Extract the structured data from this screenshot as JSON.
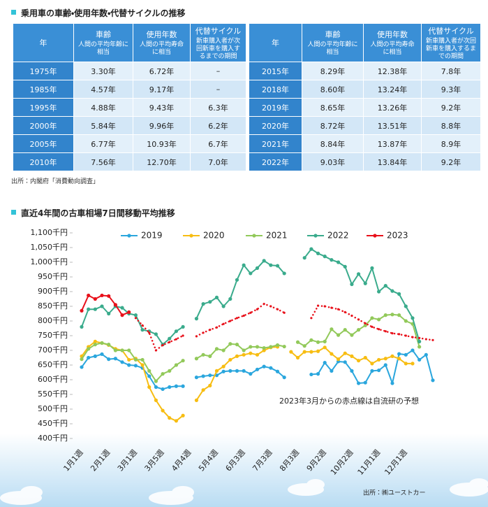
{
  "section1": {
    "title": "乗用車の車齢・使用年数・代替サイクルの推移",
    "table": {
      "header": [
        {
          "label": "年"
        },
        {
          "label": "車齢",
          "note": "人間の平均年齢に相当"
        },
        {
          "label": "使用年数",
          "note": "人間の平均寿命に相当"
        },
        {
          "label": "代替サイクル",
          "note": "新車購入者が次回新車を購入するまでの期間"
        }
      ],
      "left_rows": [
        [
          "1975年",
          "3.30年",
          "6.72年",
          "–"
        ],
        [
          "1985年",
          "4.57年",
          "9.17年",
          "–"
        ],
        [
          "1995年",
          "4.88年",
          "9.43年",
          "6.3年"
        ],
        [
          "2000年",
          "5.84年",
          "9.96年",
          "6.2年"
        ],
        [
          "2005年",
          "6.77年",
          "10.93年",
          "6.7年"
        ],
        [
          "2010年",
          "7.56年",
          "12.70年",
          "7.0年"
        ]
      ],
      "right_rows": [
        [
          "2015年",
          "8.29年",
          "12.38年",
          "7.8年"
        ],
        [
          "2018年",
          "8.60年",
          "13.24年",
          "9.3年"
        ],
        [
          "2019年",
          "8.65年",
          "13.26年",
          "9.2年"
        ],
        [
          "2020年",
          "8.72年",
          "13.51年",
          "8.8年"
        ],
        [
          "2021年",
          "8.84年",
          "13.87年",
          "8.9年"
        ],
        [
          "2022年",
          "9.03年",
          "13.84年",
          "9.2年"
        ]
      ]
    },
    "source": "出所：内閣府「消費動向調査」"
  },
  "chart_data": {
    "type": "line",
    "title": "直近4年間の古車相場7日間移動平均推移",
    "categories": [
      "1月1週",
      null,
      null,
      null,
      "2月1週",
      null,
      null,
      null,
      "3月1週",
      null,
      null,
      null,
      "3月5週",
      null,
      null,
      null,
      "4月4週",
      null,
      null,
      null,
      "5月4週",
      null,
      null,
      null,
      "6月3週",
      null,
      null,
      null,
      "7月3週",
      null,
      null,
      null,
      "8月3週",
      null,
      null,
      null,
      "9月2週",
      null,
      null,
      null,
      "10月2週",
      null,
      null,
      null,
      "11月1週",
      null,
      null,
      null,
      "12月1週",
      null,
      null,
      null,
      null
    ],
    "series": [
      {
        "name": "2019",
        "color": "#2aa6dd",
        "values": [
          643,
          675,
          680,
          687,
          670,
          672,
          660,
          650,
          648,
          640,
          612,
          575,
          568,
          575,
          578,
          578,
          null,
          608,
          612,
          615,
          615,
          628,
          630,
          630,
          630,
          620,
          635,
          645,
          640,
          628,
          608,
          null,
          null,
          null,
          618,
          620,
          658,
          630,
          662,
          660,
          630,
          588,
          590,
          630,
          632,
          650,
          588,
          688,
          685,
          700,
          668,
          685,
          598
        ]
      },
      {
        "name": "2020",
        "color": "#f7bd12",
        "values": [
          680,
          712,
          730,
          725,
          718,
          705,
          700,
          668,
          672,
          650,
          575,
          530,
          495,
          470,
          460,
          478,
          null,
          530,
          565,
          580,
          630,
          645,
          668,
          680,
          685,
          690,
          685,
          700,
          710,
          712,
          null,
          695,
          675,
          695,
          695,
          697,
          710,
          688,
          670,
          690,
          680,
          665,
          675,
          655,
          668,
          672,
          680,
          672,
          655,
          655,
          null,
          null,
          null
        ]
      },
      {
        "name": "2021",
        "color": "#92c95a",
        "values": [
          670,
          705,
          720,
          725,
          720,
          700,
          700,
          700,
          668,
          668,
          630,
          595,
          620,
          630,
          650,
          665,
          null,
          672,
          685,
          680,
          705,
          700,
          722,
          720,
          700,
          712,
          712,
          708,
          712,
          718,
          713,
          null,
          728,
          715,
          735,
          728,
          730,
          772,
          752,
          770,
          752,
          770,
          785,
          810,
          805,
          820,
          822,
          820,
          800,
          790,
          712,
          null,
          null
        ]
      },
      {
        "name": "2022",
        "color": "#3aab8c",
        "values": [
          780,
          840,
          840,
          850,
          825,
          850,
          845,
          825,
          820,
          770,
          765,
          755,
          720,
          740,
          765,
          780,
          null,
          808,
          858,
          865,
          880,
          850,
          875,
          940,
          990,
          962,
          980,
          1005,
          990,
          988,
          962,
          null,
          null,
          1015,
          1045,
          1030,
          1020,
          1008,
          1000,
          985,
          925,
          960,
          928,
          980,
          900,
          920,
          902,
          892,
          850,
          810,
          730,
          null,
          null
        ]
      },
      {
        "name": "2023",
        "color": "#e8101a",
        "values": [
          835,
          887,
          875,
          887,
          885,
          855,
          820,
          830,
          null,
          null,
          null,
          null,
          null,
          null,
          null,
          null,
          null,
          null,
          null,
          null,
          null,
          null,
          null,
          null,
          null,
          null,
          null,
          null,
          null,
          null,
          null,
          null,
          null,
          null,
          null,
          null,
          null,
          null,
          null,
          null,
          null,
          null,
          null,
          null,
          null,
          null,
          null,
          null,
          null,
          null,
          null,
          null,
          null
        ],
        "projected": [
          null,
          null,
          null,
          null,
          null,
          null,
          null,
          null,
          810,
          785,
          760,
          700,
          718,
          728,
          738,
          750,
          null,
          748,
          760,
          770,
          778,
          790,
          800,
          810,
          818,
          828,
          840,
          858,
          850,
          840,
          828,
          null,
          null,
          null,
          810,
          852,
          850,
          845,
          840,
          830,
          818,
          805,
          792,
          780,
          772,
          765,
          758,
          755,
          750,
          745,
          742,
          738,
          735
        ]
      }
    ],
    "ylim": [
      400,
      1100
    ],
    "yticks": [
      {
        "value": 400,
        "label": "400千円"
      },
      {
        "value": 450,
        "label": "450千円"
      },
      {
        "value": 500,
        "label": "500千円"
      },
      {
        "value": 550,
        "label": "550千円"
      },
      {
        "value": 600,
        "label": "600千円"
      },
      {
        "value": 650,
        "label": "650千円"
      },
      {
        "value": 700,
        "label": "700千円"
      },
      {
        "value": 750,
        "label": "750千円"
      },
      {
        "value": 800,
        "label": "800千円"
      },
      {
        "value": 850,
        "label": "850千円"
      },
      {
        "value": 900,
        "label": "900千円"
      },
      {
        "value": 950,
        "label": "950千円"
      },
      {
        "value": 1000,
        "label": "1,000千円"
      },
      {
        "value": 1050,
        "label": "1,050千円"
      },
      {
        "value": 1100,
        "label": "1,100千円"
      }
    ],
    "grid": false,
    "legend": "top",
    "annotation": "2023年3月からの赤点線は自流研の予想",
    "source": "出所：㈱ユーストカー"
  }
}
